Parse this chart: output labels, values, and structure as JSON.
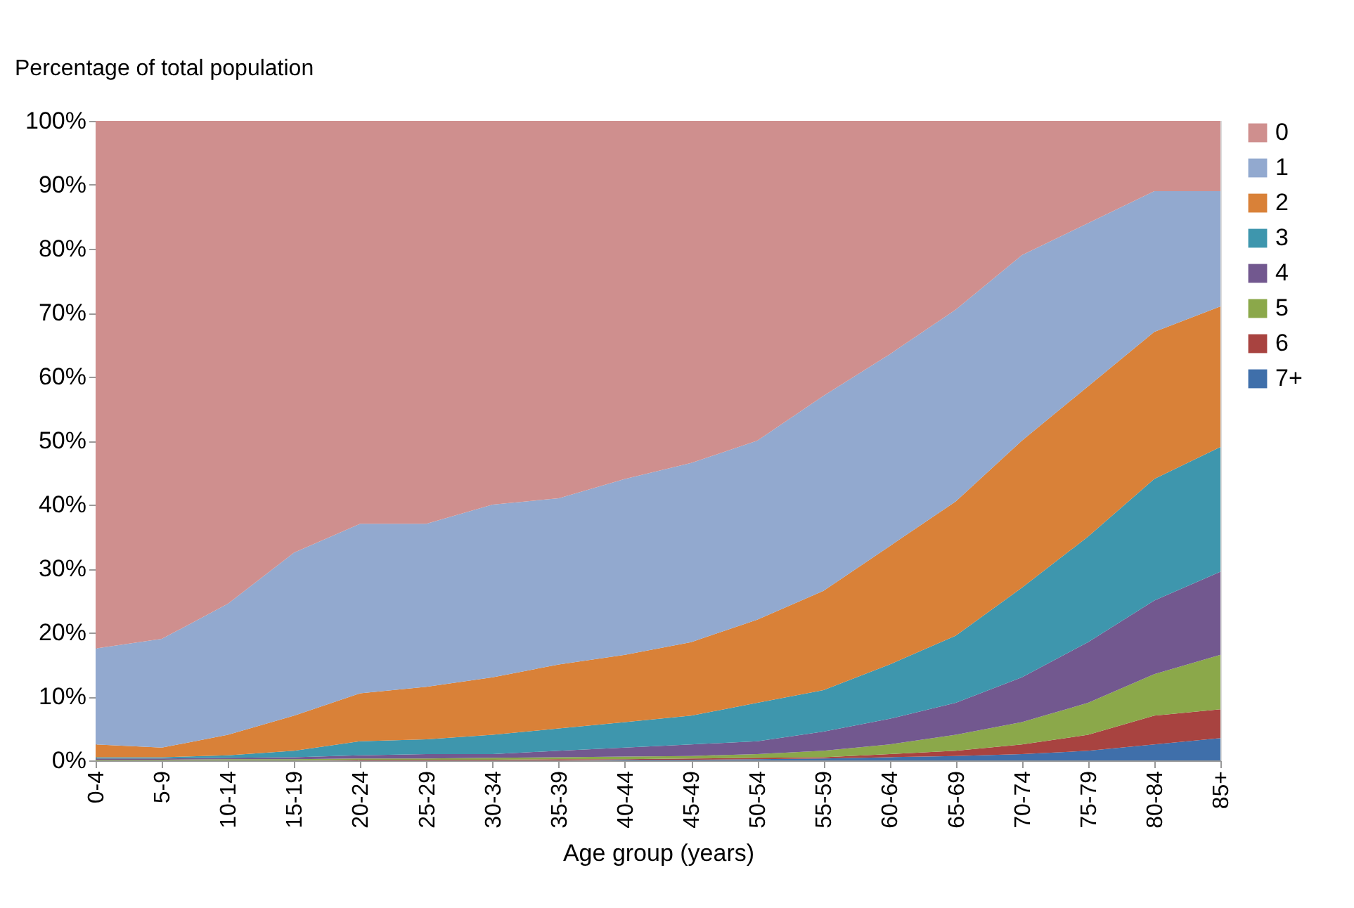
{
  "chart_data": {
    "type": "area",
    "stacked": true,
    "ylabel": "Percentage of total population",
    "xlabel": "Age group (years)",
    "categories": [
      "0-4",
      "5-9",
      "10-14",
      "15-19",
      "20-24",
      "25-29",
      "30-34",
      "35-39",
      "40-44",
      "45-49",
      "50-54",
      "55-59",
      "60-64",
      "65-69",
      "70-74",
      "75-79",
      "80-84",
      "85+"
    ],
    "series": [
      {
        "name": "7+",
        "color": "#3f6faa",
        "values": [
          0,
          0,
          0,
          0,
          0,
          0,
          0,
          0,
          0.1,
          0.1,
          0.2,
          0.3,
          0.5,
          0.7,
          1,
          1.5,
          2.5,
          3.5
        ]
      },
      {
        "name": "6",
        "color": "#a84340",
        "values": [
          0,
          0,
          0,
          0,
          0.1,
          0.1,
          0.1,
          0.2,
          0.1,
          0.2,
          0.2,
          0.2,
          0.5,
          0.8,
          1.5,
          2.5,
          4.5,
          4.5
        ]
      },
      {
        "name": "5",
        "color": "#8ba84a",
        "values": [
          0.1,
          0.1,
          0.2,
          0.2,
          0.2,
          0.2,
          0.3,
          0.3,
          0.4,
          0.4,
          0.6,
          1,
          1.5,
          2.5,
          3.5,
          5,
          6.5,
          8.5
        ]
      },
      {
        "name": "4",
        "color": "#72588f",
        "values": [
          0.2,
          0.2,
          0.2,
          0.3,
          0.5,
          0.7,
          0.6,
          1,
          1.4,
          1.8,
          2,
          3,
          4,
          5,
          7,
          9.5,
          11.5,
          13
        ]
      },
      {
        "name": "3",
        "color": "#3e96ad",
        "values": [
          0.2,
          0.2,
          0.4,
          1,
          2.2,
          2.3,
          3,
          3.5,
          4,
          4.5,
          6,
          6.5,
          8.5,
          10.5,
          14,
          16.5,
          19,
          19.5
        ]
      },
      {
        "name": "2",
        "color": "#d98138",
        "values": [
          2,
          1.5,
          3.2,
          5.5,
          7.5,
          8.2,
          9,
          10,
          10.5,
          11.5,
          13,
          15.5,
          18.5,
          21,
          23,
          23.5,
          23,
          22
        ]
      },
      {
        "name": "1",
        "color": "#92a9cf",
        "values": [
          15,
          17,
          20.5,
          25.5,
          26.5,
          25.5,
          27,
          26,
          27.5,
          28,
          28,
          30.5,
          30,
          30,
          29,
          25.5,
          22,
          18
        ]
      },
      {
        "name": "0",
        "color": "#cf8f8e",
        "values": [
          82.5,
          81,
          75.5,
          67.5,
          63,
          63,
          60,
          59,
          56,
          53.5,
          50,
          43,
          36.5,
          29.5,
          21,
          16,
          11,
          11
        ]
      }
    ],
    "ylim": [
      0,
      100
    ],
    "yticks": [
      {
        "value": 0,
        "label": "0%"
      },
      {
        "value": 10,
        "label": "10%"
      },
      {
        "value": 20,
        "label": "20%"
      },
      {
        "value": 30,
        "label": "30%"
      },
      {
        "value": 40,
        "label": "40%"
      },
      {
        "value": 50,
        "label": "50%"
      },
      {
        "value": 60,
        "label": "60%"
      },
      {
        "value": 70,
        "label": "70%"
      },
      {
        "value": 80,
        "label": "80%"
      },
      {
        "value": 90,
        "label": "90%"
      },
      {
        "value": 100,
        "label": "100%"
      }
    ],
    "grid": false,
    "legend": "right"
  }
}
